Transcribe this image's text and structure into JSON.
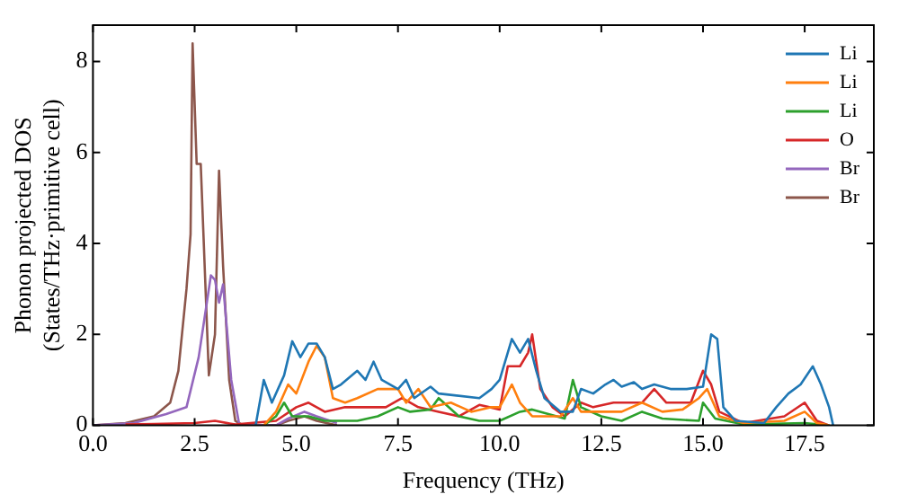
{
  "chart_data": {
    "type": "line",
    "xlabel": "Frequency (THz)",
    "ylabel": "Phonon projected DOS\n(States/THz·primitive cell)",
    "xlim": [
      0,
      19.2
    ],
    "ylim": [
      0,
      8.8
    ],
    "xticks": [
      {
        "value": 0,
        "label": "0.0"
      },
      {
        "value": 2.5,
        "label": "2.5"
      },
      {
        "value": 5,
        "label": "5.0"
      },
      {
        "value": 7.5,
        "label": "7.5"
      },
      {
        "value": 10,
        "label": "10.0"
      },
      {
        "value": 12.5,
        "label": "12.5"
      },
      {
        "value": 15,
        "label": "15.0"
      },
      {
        "value": 17.5,
        "label": "17.5"
      }
    ],
    "yticks": [
      0,
      2,
      4,
      6,
      8
    ],
    "grid": false,
    "legend": "top right",
    "marker": "none",
    "line_style": "solid",
    "series": [
      {
        "name": "Li",
        "color": "#1f77b4",
        "x": [
          4.0,
          4.2,
          4.4,
          4.7,
          4.9,
          5.1,
          5.3,
          5.5,
          5.7,
          5.9,
          6.1,
          6.5,
          6.7,
          6.9,
          7.1,
          7.5,
          7.7,
          7.9,
          8.3,
          8.5,
          9.5,
          9.8,
          10.0,
          10.3,
          10.5,
          10.7,
          10.9,
          11.1,
          11.5,
          11.8,
          12.0,
          12.3,
          12.6,
          12.8,
          13.0,
          13.3,
          13.5,
          13.8,
          14.2,
          14.6,
          15.0,
          15.2,
          15.35,
          15.5,
          15.8,
          16.5,
          16.8,
          17.1,
          17.4,
          17.7,
          17.9,
          18.1,
          18.2
        ],
        "values": [
          0,
          1.0,
          0.5,
          1.1,
          1.85,
          1.5,
          1.8,
          1.8,
          1.5,
          0.8,
          0.9,
          1.2,
          1.0,
          1.4,
          1.0,
          0.8,
          1.0,
          0.6,
          0.85,
          0.7,
          0.6,
          0.8,
          1.0,
          1.9,
          1.6,
          1.9,
          1.2,
          0.6,
          0.3,
          0.3,
          0.8,
          0.7,
          0.9,
          1.0,
          0.85,
          0.95,
          0.8,
          0.9,
          0.8,
          0.8,
          0.85,
          2.0,
          1.9,
          0.4,
          0.1,
          0.05,
          0.4,
          0.7,
          0.9,
          1.3,
          0.9,
          0.4,
          0
        ]
      },
      {
        "name": "Li",
        "color": "#ff7f0e",
        "x": [
          4.2,
          4.5,
          4.8,
          5.0,
          5.3,
          5.5,
          5.7,
          5.9,
          6.2,
          6.5,
          7.0,
          7.5,
          7.7,
          8.0,
          8.3,
          8.8,
          9.3,
          9.8,
          10.0,
          10.3,
          10.5,
          10.8,
          11.5,
          11.8,
          12.0,
          12.5,
          13.0,
          13.5,
          14.0,
          14.5,
          14.9,
          15.1,
          15.4,
          16.0,
          17.0,
          17.5,
          17.8,
          18.1
        ],
        "values": [
          0,
          0.3,
          0.9,
          0.7,
          1.4,
          1.75,
          1.5,
          0.6,
          0.5,
          0.6,
          0.8,
          0.8,
          0.5,
          0.8,
          0.4,
          0.5,
          0.3,
          0.4,
          0.4,
          0.9,
          0.5,
          0.2,
          0.2,
          0.6,
          0.3,
          0.3,
          0.3,
          0.5,
          0.3,
          0.35,
          0.6,
          0.8,
          0.2,
          0.05,
          0.1,
          0.3,
          0.05,
          0
        ]
      },
      {
        "name": "Li",
        "color": "#2ca02c",
        "x": [
          4.2,
          4.5,
          4.7,
          4.9,
          5.3,
          5.7,
          6.5,
          7.0,
          7.5,
          7.8,
          8.3,
          8.5,
          9.0,
          9.5,
          10.0,
          10.5,
          10.8,
          11.2,
          11.6,
          11.8,
          12.0,
          12.5,
          13.0,
          13.5,
          14.0,
          14.9,
          15.0,
          15.3,
          16.0,
          17.5,
          18.1
        ],
        "values": [
          0,
          0.2,
          0.5,
          0.2,
          0.2,
          0.1,
          0.1,
          0.2,
          0.4,
          0.3,
          0.35,
          0.6,
          0.2,
          0.1,
          0.1,
          0.3,
          0.35,
          0.25,
          0.15,
          1.0,
          0.4,
          0.2,
          0.1,
          0.3,
          0.15,
          0.1,
          0.5,
          0.15,
          0.02,
          0.05,
          0
        ]
      },
      {
        "name": "O",
        "color": "#d62728",
        "x": [
          0.8,
          1.5,
          2.5,
          3.0,
          3.5,
          4.5,
          5.0,
          5.3,
          5.7,
          6.2,
          6.7,
          7.2,
          7.6,
          8.0,
          8.5,
          9.0,
          9.5,
          10.0,
          10.2,
          10.5,
          10.7,
          10.8,
          11.0,
          11.3,
          11.6,
          12.0,
          12.3,
          12.8,
          13.5,
          13.8,
          14.1,
          14.7,
          15.0,
          15.2,
          15.4,
          16.0,
          17.0,
          17.5,
          17.8,
          18.1
        ],
        "values": [
          0.02,
          0.03,
          0.05,
          0.1,
          0.02,
          0.1,
          0.4,
          0.5,
          0.3,
          0.4,
          0.4,
          0.4,
          0.6,
          0.4,
          0.3,
          0.2,
          0.45,
          0.35,
          1.3,
          1.3,
          1.6,
          2.0,
          0.8,
          0.4,
          0.2,
          0.5,
          0.4,
          0.5,
          0.5,
          0.8,
          0.5,
          0.5,
          1.2,
          0.9,
          0.3,
          0.05,
          0.2,
          0.5,
          0.1,
          0
        ]
      },
      {
        "name": "Br",
        "color": "#9467bd",
        "x": [
          0,
          1.0,
          1.8,
          2.3,
          2.6,
          2.9,
          3.0,
          3.1,
          3.2,
          3.4,
          3.6,
          4.5,
          4.8,
          5.2,
          5.5,
          6.0
        ],
        "values": [
          0,
          0.05,
          0.25,
          0.4,
          1.5,
          3.3,
          3.2,
          2.7,
          3.1,
          1.0,
          0,
          0,
          0.15,
          0.3,
          0.2,
          0.05
        ]
      },
      {
        "name": "Br",
        "color": "#8c564b",
        "x": [
          0,
          0.8,
          1.5,
          1.9,
          2.1,
          2.3,
          2.4,
          2.45,
          2.55,
          2.65,
          2.85,
          3.0,
          3.1,
          3.2,
          3.35,
          3.5,
          3.7,
          4.5,
          4.8,
          5.2,
          5.5,
          6.0
        ],
        "values": [
          0,
          0.05,
          0.2,
          0.5,
          1.2,
          3.0,
          4.2,
          8.4,
          5.75,
          5.75,
          1.1,
          2.0,
          5.6,
          3.5,
          1.0,
          0.1,
          0,
          0,
          0.1,
          0.2,
          0.1,
          0
        ]
      }
    ]
  }
}
